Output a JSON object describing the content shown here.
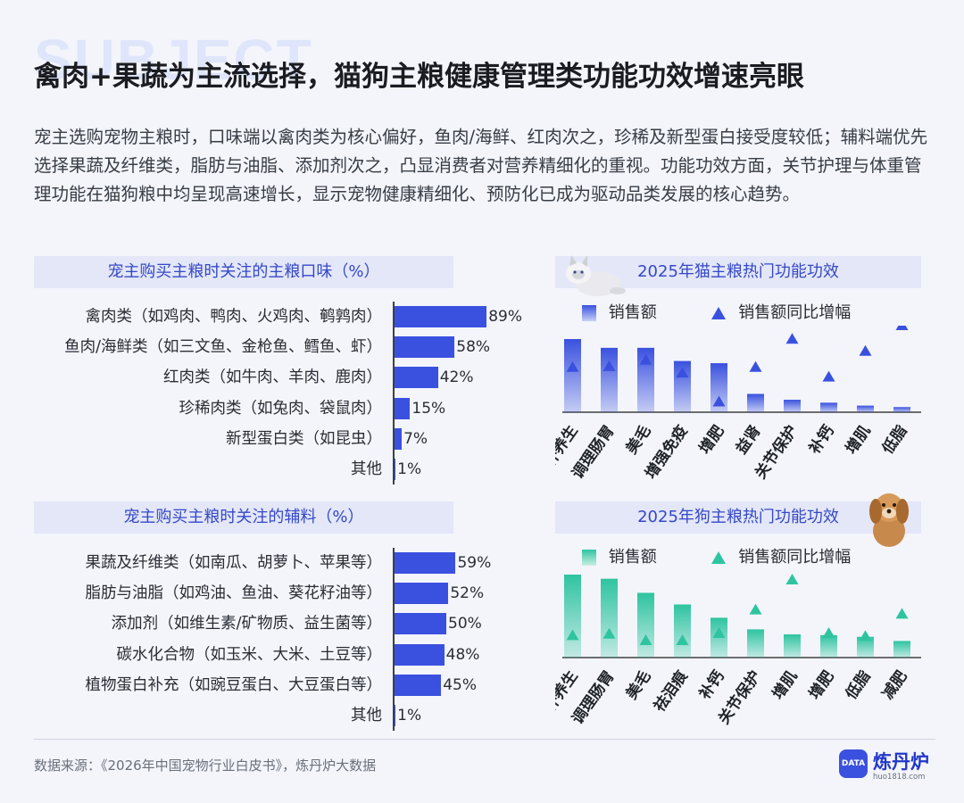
{
  "header": {
    "bg_word": "SUBJECT",
    "title": "禽肉+果蔬为主流选择，猫狗主粮健康管理类功能功效增速亮眼"
  },
  "intro": "宠主选购宠物主粮时，口味端以禽肉类为核心偏好，鱼肉/海鲜、红肉次之，珍稀及新型蛋白接受度较低；辅料端优先选择果蔬及纤维类，脂肪与油脂、添加剂次之，凸显消费者对营养精细化的重视。功能功效方面，关节护理与体重管理功能在猫狗粮中均呈现高速增长，显示宠物健康精细化、预防化已成为驱动品类发展的核心趋势。",
  "colors": {
    "accent": "#3a51df",
    "teal": "#2ec4a0",
    "panel": "#e3e7f8"
  },
  "chart_data": [
    {
      "type": "bar",
      "orientation": "horizontal",
      "title": "宠主购买主粮时关注的主粮口味（%）",
      "categories": [
        "禽肉类（如鸡肉、鸭肉、火鸡肉、鹌鹑肉）",
        "鱼肉/海鲜类（如三文鱼、金枪鱼、鳕鱼、虾）",
        "红肉类（如牛肉、羊肉、鹿肉）",
        "珍稀肉类（如兔肉、袋鼠肉）",
        "新型蛋白类（如昆虫）",
        "其他"
      ],
      "values": [
        89,
        58,
        42,
        15,
        7,
        1
      ],
      "value_labels": [
        "89%",
        "58%",
        "42%",
        "15%",
        "7%",
        "1%"
      ]
    },
    {
      "type": "bar",
      "orientation": "horizontal",
      "title": "宠主购买主粮时关注的辅料（%）",
      "categories": [
        "果蔬及纤维类（如南瓜、胡萝卜、苹果等）",
        "脂肪与油脂（如鸡油、鱼油、葵花籽油等）",
        "添加剂（如维生素/矿物质、益生菌等）",
        "碳水化合物（如玉米、大米、土豆等）",
        "植物蛋白补充（如豌豆蛋白、大豆蛋白等）",
        "其他"
      ],
      "values": [
        59,
        52,
        50,
        48,
        45,
        1
      ],
      "value_labels": [
        "59%",
        "52%",
        "50%",
        "48%",
        "45%",
        "1%"
      ]
    },
    {
      "type": "bar",
      "title": "2025年猫主粮热门功能功效",
      "legend": [
        "销售额",
        "销售额同比增幅"
      ],
      "categories": [
        "滋补养生",
        "调理肠胃",
        "美毛",
        "增强免疫",
        "增肥",
        "益肾",
        "关节保护",
        "补钙",
        "增肌",
        "低脂"
      ],
      "category_lines": [
        [
          "滋补养生"
        ],
        [
          "调理肠胃"
        ],
        [
          "美毛"
        ],
        [
          "增强免疫"
        ],
        [
          "增肥"
        ],
        [
          "益肾"
        ],
        [
          "关节保护"
        ],
        [
          "补钙"
        ],
        [
          "增肌"
        ],
        [
          "低脂"
        ]
      ],
      "series": [
        {
          "name": "销售额",
          "values": [
            100,
            88,
            88,
            70,
            67,
            25,
            17,
            13,
            9,
            7
          ]
        },
        {
          "name": "销售额同比增幅",
          "values": [
            48,
            49,
            57,
            41,
            5,
            48,
            83,
            36,
            68,
            100
          ]
        }
      ],
      "color": "#3a51df"
    },
    {
      "type": "bar",
      "title": "2025年狗主粮热门功能功效",
      "legend": [
        "销售额",
        "销售额同比增幅"
      ],
      "categories": [
        "滋补养生",
        "调理肠胃",
        "美毛",
        "祛泪痕",
        "补钙",
        "关节保护",
        "增肌",
        "增肥",
        "低脂",
        "减肥"
      ],
      "category_lines": [
        [
          "滋补养生"
        ],
        [
          "调理肠胃"
        ],
        [
          "美毛"
        ],
        [
          "祛泪痕"
        ],
        [
          "补钙"
        ],
        [
          "关节保护"
        ],
        [
          "增肌"
        ],
        [
          "增肥"
        ],
        [
          "低脂"
        ],
        [
          "减肥"
        ]
      ],
      "series": [
        {
          "name": "销售额",
          "values": [
            100,
            95,
            78,
            64,
            48,
            34,
            28,
            27,
            25,
            20
          ]
        },
        {
          "name": "销售额同比增幅",
          "values": [
            22,
            24,
            15,
            15,
            25,
            58,
            100,
            25,
            21,
            52
          ]
        }
      ],
      "color": "#2ec4a0"
    }
  ],
  "footer": {
    "source": "数据来源：《2026年中国宠物行业白皮书》，炼丹炉大数据",
    "logo_badge": "DATA",
    "logo_name": "炼丹炉",
    "logo_url": "huo1818.com"
  }
}
